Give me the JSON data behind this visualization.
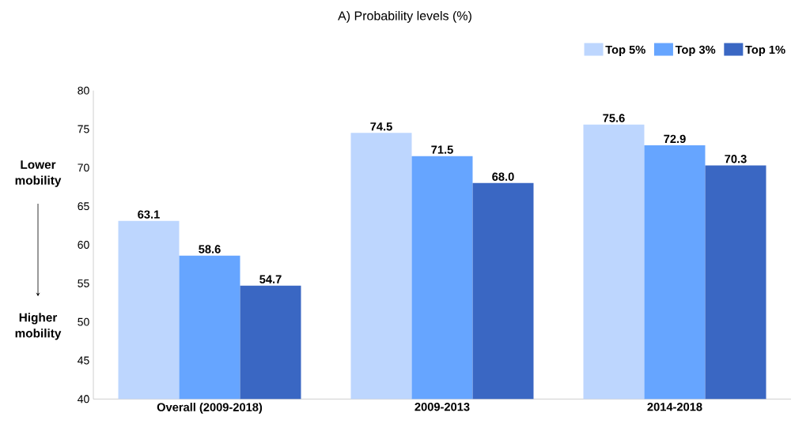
{
  "chart_data": {
    "type": "bar",
    "title": "A)    Probability levels (%)",
    "categories": [
      "Overall (2009-2018)",
      "2009-2013",
      "2014-2018"
    ],
    "series": [
      {
        "name": "Top 5%",
        "color": "#bdd6fe",
        "values": [
          63.1,
          74.5,
          75.6
        ]
      },
      {
        "name": "Top 3%",
        "color": "#66a5ff",
        "values": [
          58.6,
          71.5,
          72.9
        ]
      },
      {
        "name": "Top 1%",
        "color": "#3a67c3",
        "values": [
          54.7,
          68.0,
          70.3
        ]
      }
    ],
    "value_labels": [
      [
        "63.1",
        "74.5",
        "75.6"
      ],
      [
        "58.6",
        "71.5",
        "72.9"
      ],
      [
        "54.7",
        "68.0",
        "70.3"
      ]
    ],
    "ylim": [
      40,
      80
    ],
    "yticks": [
      40,
      45,
      50,
      55,
      60,
      65,
      70,
      75,
      80
    ],
    "annotations": [
      "Lower mobility",
      "Higher mobility"
    ],
    "legend": "top right",
    "grid": false
  }
}
